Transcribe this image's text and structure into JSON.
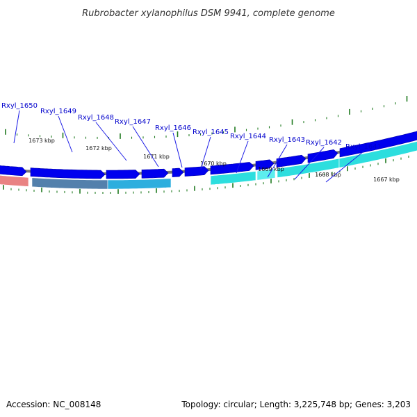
{
  "title": "Rubrobacter xylanophilus DSM 9941, complete genome",
  "footer": {
    "accession": "Accession: NC_008148",
    "summary": "Topology: circular; Length: 3,225,748 bp; Genes: 3,203"
  },
  "colors": {
    "gene_label": "#0000cc",
    "callout_line": "#1a1ae6",
    "cds_arrow": "#0000ee",
    "backbone": "#777777",
    "tick": "#1f7a1f",
    "band_red": "#e87d7d",
    "band_steel": "#4a7aa8",
    "band_sky": "#22aadd",
    "band_cyan": "#22dddd",
    "band_cyan_light": "#55eeee"
  },
  "gene_labels": [
    {
      "name": "Rxyl_1650"
    },
    {
      "name": "Rxyl_1649"
    },
    {
      "name": "Rxyl_1648"
    },
    {
      "name": "Rxyl_1647"
    },
    {
      "name": "Rxyl_1646"
    },
    {
      "name": "Rxyl_1645"
    },
    {
      "name": "Rxyl_1644"
    },
    {
      "name": "Rxyl_1643"
    },
    {
      "name": "Rxyl_1642"
    },
    {
      "name": "Rxyl_1641"
    }
  ],
  "kbp_labels": [
    {
      "text": "1673 kbp"
    },
    {
      "text": "1672 kbp"
    },
    {
      "text": "1671 kbp"
    },
    {
      "text": "1670 kbp"
    },
    {
      "text": "1669 kbp"
    },
    {
      "text": "1668 kbp"
    },
    {
      "text": "1667 kbp"
    }
  ]
}
